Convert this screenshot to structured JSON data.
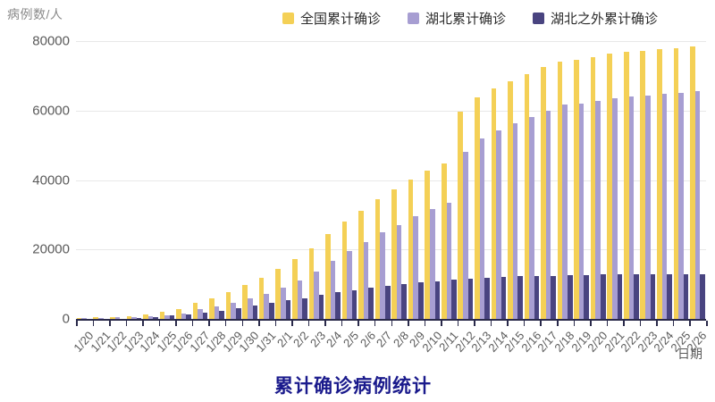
{
  "chart": {
    "y_axis_title": "病例数/人",
    "x_axis_title": "日期",
    "bottom_title": "累计确诊病例统计",
    "colors": {
      "national": "#F4D056",
      "hubei": "#A79ED2",
      "outside_hubei": "#494480",
      "axis": "#2A2A4A",
      "grid": "#E8E8E8",
      "title": "#1A1A8C"
    }
  },
  "chart_data": {
    "type": "bar",
    "title": "累计确诊病例统计",
    "xlabel": "日期",
    "ylabel": "病例数/人",
    "ylim": [
      0,
      80000
    ],
    "yticks": [
      0,
      20000,
      40000,
      60000,
      80000
    ],
    "grid": true,
    "legend_position": "top",
    "categories": [
      "1/20",
      "1/21",
      "1/22",
      "1/23",
      "1/24",
      "1/25",
      "1/26",
      "1/27",
      "1/28",
      "1/29",
      "1/30",
      "1/31",
      "2/1",
      "2/2",
      "2/3",
      "2/4",
      "2/5",
      "2/6",
      "2/7",
      "2/8",
      "2/9",
      "2/10",
      "2/11",
      "2/12",
      "2/13",
      "2/14",
      "2/15",
      "2/16",
      "2/17",
      "2/18",
      "2/19",
      "2/20",
      "2/21",
      "2/22",
      "2/23",
      "2/24",
      "2/25",
      "2/26"
    ],
    "series": [
      {
        "name": "全国累计确诊",
        "color": "#F4D056",
        "values": [
          291,
          440,
          571,
          830,
          1287,
          1975,
          2744,
          4515,
          5974,
          7711,
          9692,
          11791,
          14380,
          17205,
          20438,
          24324,
          28018,
          31161,
          34546,
          37198,
          40171,
          42638,
          44653,
          59804,
          63851,
          66492,
          68500,
          70548,
          72436,
          74185,
          74576,
          75465,
          76288,
          76936,
          77150,
          77658,
          78064,
          78497
        ]
      },
      {
        "name": "湖北累计确诊",
        "color": "#A79ED2",
        "values": [
          270,
          375,
          444,
          549,
          729,
          1052,
          1423,
          2714,
          3554,
          4586,
          5806,
          7153,
          9074,
          11177,
          13522,
          16678,
          19665,
          22112,
          24953,
          27100,
          29631,
          31728,
          33366,
          48206,
          51986,
          54406,
          56249,
          58182,
          59989,
          61682,
          62031,
          62662,
          63454,
          64084,
          64287,
          64786,
          65187,
          65596
        ]
      },
      {
        "name": "湖北之外累计确诊",
        "color": "#494480",
        "values": [
          21,
          65,
          127,
          281,
          558,
          923,
          1321,
          1801,
          2420,
          3125,
          3886,
          4638,
          5306,
          6028,
          6916,
          7646,
          8353,
          9049,
          9593,
          10098,
          10540,
          10910,
          11287,
          11598,
          11865,
          12086,
          12251,
          12366,
          12447,
          12503,
          12545,
          12803,
          12834,
          12852,
          12863,
          12872,
          12877,
          12901
        ]
      }
    ]
  }
}
